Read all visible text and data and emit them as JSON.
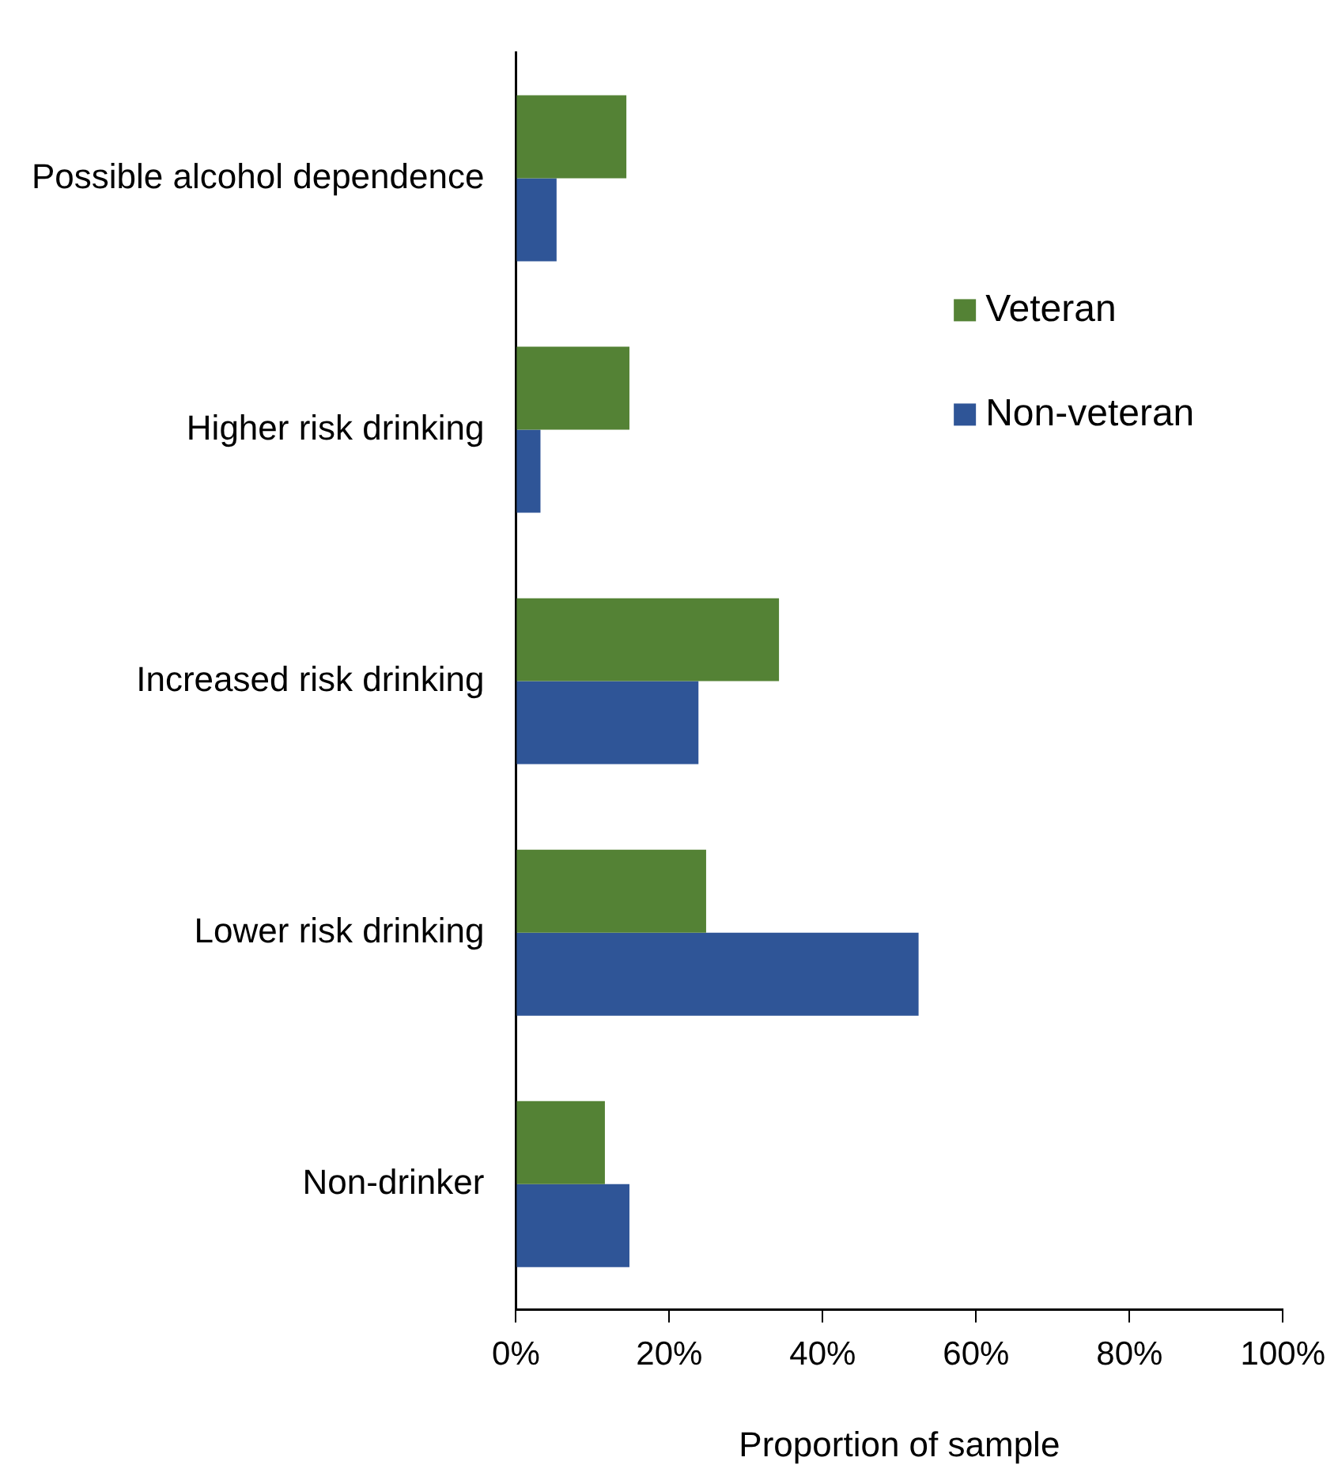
{
  "chart_data": {
    "type": "bar",
    "orientation": "horizontal",
    "xlabel": "Proportion of sample",
    "categories": [
      "Possible alcohol dependence",
      "Higher risk drinking",
      "Increased risk drinking",
      "Lower risk drinking",
      "Non-drinker"
    ],
    "series": [
      {
        "name": "Veteran",
        "color": "#548235",
        "values": [
          14.4,
          14.8,
          34.3,
          24.8,
          11.6
        ]
      },
      {
        "name": "Non-veteran",
        "color": "#2f5597",
        "values": [
          5.3,
          3.2,
          23.8,
          52.5,
          14.8
        ]
      }
    ],
    "xlim": [
      0,
      100
    ],
    "xticks": [
      {
        "value": 0,
        "label": "0%"
      },
      {
        "value": 20,
        "label": "20%"
      },
      {
        "value": 40,
        "label": "40%"
      },
      {
        "value": 60,
        "label": "60%"
      },
      {
        "value": 80,
        "label": "80%"
      },
      {
        "value": 100,
        "label": "100%"
      }
    ],
    "grid": false,
    "legend": "top right"
  }
}
